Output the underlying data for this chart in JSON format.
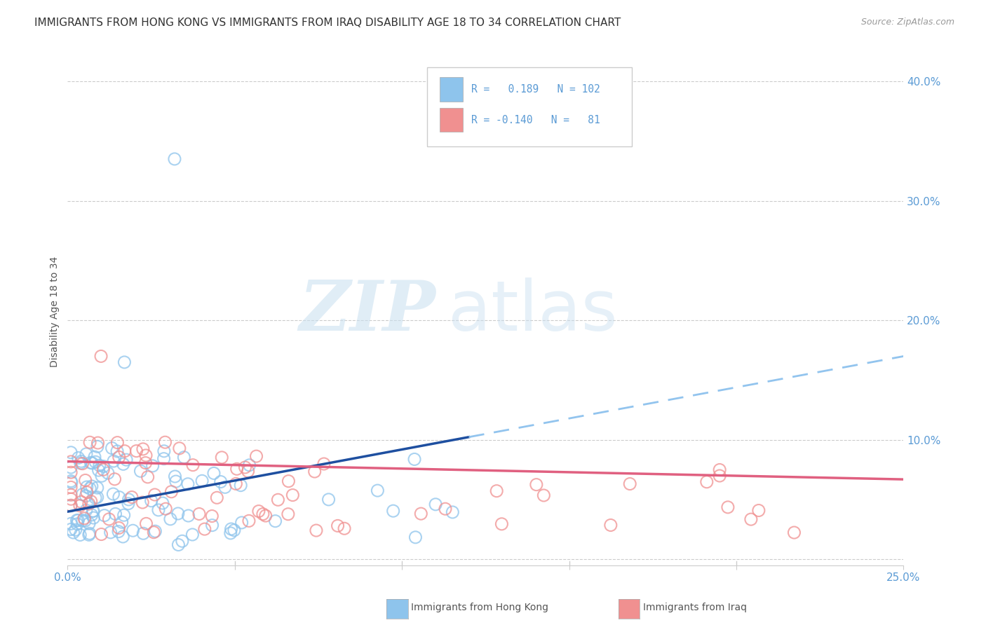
{
  "title": "IMMIGRANTS FROM HONG KONG VS IMMIGRANTS FROM IRAQ DISABILITY AGE 18 TO 34 CORRELATION CHART",
  "source": "Source: ZipAtlas.com",
  "ylabel": "Disability Age 18 to 34",
  "xlim": [
    0.0,
    0.25
  ],
  "ylim": [
    -0.005,
    0.42
  ],
  "xtick_vals": [
    0.0,
    0.05,
    0.1,
    0.15,
    0.2,
    0.25
  ],
  "ytick_vals": [
    0.0,
    0.1,
    0.2,
    0.3,
    0.4
  ],
  "xticklabels": [
    "0.0%",
    "",
    "",
    "",
    "",
    "25.0%"
  ],
  "yticklabels": [
    "",
    "10.0%",
    "20.0%",
    "30.0%",
    "40.0%"
  ],
  "color_hk": "#8EC4EC",
  "color_iraq": "#F09090",
  "color_hk_line": "#1E4FA0",
  "color_iraq_line": "#E06080",
  "color_hk_dashed": "#92C4EE",
  "R_hk": 0.189,
  "N_hk": 102,
  "R_iraq": -0.14,
  "N_iraq": 81,
  "watermark_zip": "ZIP",
  "watermark_atlas": "atlas",
  "background_color": "#ffffff",
  "grid_color": "#cccccc",
  "tick_color": "#5B9BD5",
  "legend_text_color": "#5B9BD5",
  "title_fontsize": 11,
  "axis_label_fontsize": 10,
  "tick_fontsize": 11,
  "source_fontsize": 9
}
